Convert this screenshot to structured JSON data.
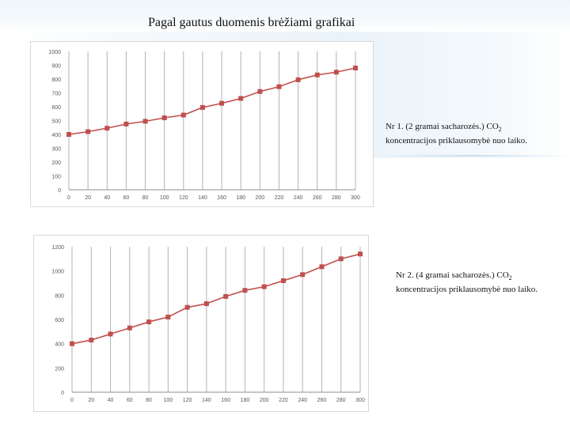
{
  "title": "Pagal gautus duomenis brėžiami grafikai",
  "captions": [
    {
      "main": "Nr 1. (2 gramai sacharozės.) CO",
      "sub": "2",
      "rest": "koncentracijos priklausomybė nuo laiko."
    },
    {
      "main": "Nr 2. (4 gramai sacharozės.) CO",
      "sub": "2",
      "rest": "koncentracijos priklausomybė nuo laiko."
    }
  ],
  "colors": {
    "series": "#c0504d",
    "grid": "#b3b3b3",
    "axis_text": "#595959"
  },
  "chart_data": [
    {
      "type": "line",
      "title": "",
      "xlabel": "",
      "ylabel": "",
      "x": [
        0,
        20,
        40,
        60,
        80,
        100,
        120,
        140,
        160,
        180,
        200,
        220,
        240,
        260,
        280,
        300
      ],
      "x_tick_labels": [
        "0",
        "20",
        "40",
        "60",
        "80",
        "100",
        "120",
        "140",
        "160",
        "180",
        "200",
        "220",
        "240",
        "260",
        "280",
        "300"
      ],
      "y_tick_labels": [
        "0",
        "100",
        "200",
        "300",
        "400",
        "500",
        "600",
        "700",
        "800",
        "900",
        "1000"
      ],
      "yticks": [
        0,
        100,
        200,
        300,
        400,
        500,
        600,
        700,
        800,
        900,
        1000
      ],
      "ylim": [
        0,
        1000
      ],
      "grid": "vertical",
      "legend": "none",
      "series": [
        {
          "values": [
            400,
            420,
            445,
            475,
            495,
            520,
            540,
            595,
            625,
            660,
            710,
            745,
            795,
            830,
            850,
            880
          ]
        }
      ]
    },
    {
      "type": "line",
      "title": "",
      "xlabel": "",
      "ylabel": "",
      "x": [
        0,
        20,
        40,
        60,
        80,
        100,
        120,
        140,
        160,
        180,
        200,
        220,
        240,
        260,
        280,
        300
      ],
      "x_tick_labels": [
        "0",
        "20",
        "40",
        "60",
        "80",
        "100",
        "120",
        "140",
        "160",
        "180",
        "200",
        "220",
        "240",
        "260",
        "280",
        "300"
      ],
      "y_tick_labels": [
        "0",
        "200",
        "400",
        "600",
        "800",
        "1000",
        "1200"
      ],
      "yticks": [
        0,
        200,
        400,
        600,
        800,
        1000,
        1200
      ],
      "ylim": [
        0,
        1200
      ],
      "grid": "vertical",
      "legend": "none",
      "series": [
        {
          "values": [
            400,
            430,
            480,
            530,
            580,
            620,
            700,
            730,
            790,
            840,
            870,
            920,
            970,
            1035,
            1100,
            1140
          ]
        }
      ]
    }
  ]
}
